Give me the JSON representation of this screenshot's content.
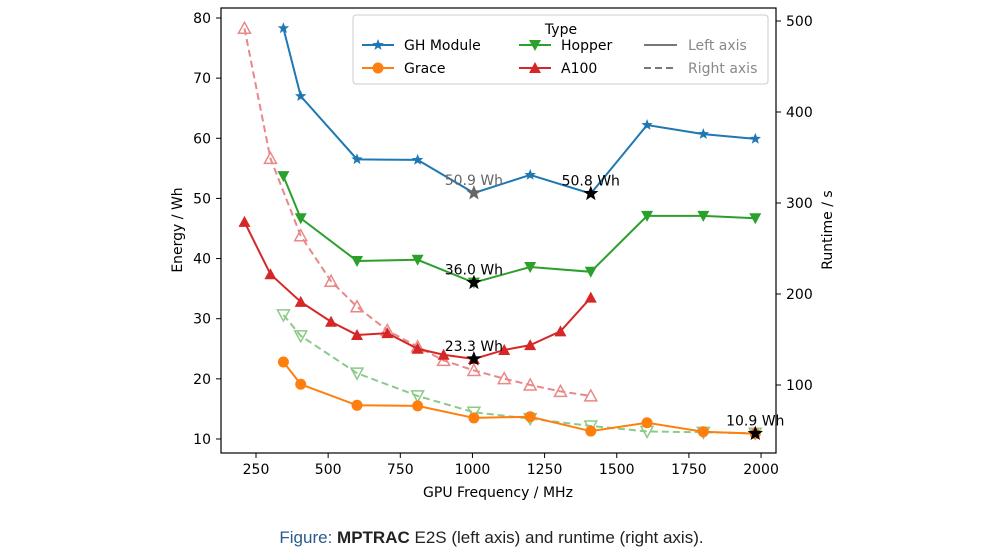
{
  "chart_data": {
    "type": "line",
    "xlabel": "GPU Frequency / MHz",
    "ylabel": "Energy / Wh",
    "ylabel_right": "Runtime / s",
    "xlim": [
      150,
      2040
    ],
    "ylim": [
      7.5,
      81.7
    ],
    "ylim_right": [
      0,
      525
    ],
    "xticks": [
      250,
      500,
      750,
      1000,
      1250,
      1500,
      1750,
      2000
    ],
    "yticks": [
      10,
      20,
      30,
      40,
      50,
      60,
      70,
      80
    ],
    "yticks_right": [
      100,
      200,
      300,
      400,
      500
    ],
    "grid": false,
    "legend": {
      "title": "Type",
      "placement": "top-right",
      "entries": [
        "GH Module",
        "Grace",
        "Hopper",
        "A100"
      ],
      "style_entries": [
        "Left axis",
        "Right axis"
      ]
    },
    "colors": {
      "GH Module": "#1f77b4",
      "Grace": "#ff7f0e",
      "Hopper": "#2ca02c",
      "A100": "#d62728"
    },
    "series": [
      {
        "name": "GH Module",
        "axis": "left",
        "marker": "star",
        "x": [
          345,
          405,
          600,
          810,
          1005,
          1200,
          1410,
          1605,
          1800,
          1980
        ],
        "y": [
          78.3,
          67.0,
          56.5,
          56.4,
          50.9,
          53.9,
          50.8,
          62.2,
          60.7,
          59.9
        ]
      },
      {
        "name": "Grace",
        "axis": "left",
        "marker": "circle",
        "x": [
          345,
          405,
          600,
          810,
          1005,
          1200,
          1410,
          1605,
          1800,
          1980
        ],
        "y": [
          22.8,
          19.1,
          15.6,
          15.5,
          13.5,
          13.7,
          11.3,
          12.7,
          11.2,
          10.9
        ]
      },
      {
        "name": "Hopper",
        "axis": "left",
        "marker": "triangle-down",
        "x": [
          345,
          405,
          600,
          810,
          1005,
          1200,
          1410,
          1605,
          1800,
          1980
        ],
        "y": [
          53.7,
          46.7,
          39.6,
          39.8,
          36.0,
          38.6,
          37.8,
          47.1,
          47.1,
          46.7
        ]
      },
      {
        "name": "A100",
        "axis": "left",
        "marker": "triangle-up",
        "x": [
          210,
          300,
          405,
          510,
          600,
          705,
          810,
          900,
          1005,
          1110,
          1200,
          1305,
          1410
        ],
        "y": [
          46.1,
          37.4,
          32.8,
          29.5,
          27.3,
          27.6,
          25.0,
          24.0,
          23.3,
          24.8,
          25.6,
          27.9,
          33.5
        ]
      },
      {
        "name": "Hopper",
        "axis": "right",
        "marker": "triangle-down",
        "x": [
          345,
          405,
          600,
          810,
          1005,
          1200,
          1410,
          1605,
          1800,
          1980
        ],
        "y": [
          177,
          154,
          113,
          88,
          70,
          63,
          55,
          49,
          48,
          47
        ]
      },
      {
        "name": "A100",
        "axis": "right",
        "marker": "triangle-up",
        "x": [
          210,
          300,
          405,
          510,
          600,
          705,
          810,
          900,
          1005,
          1110,
          1200,
          1305,
          1410
        ],
        "y": [
          492,
          349,
          264,
          214,
          186,
          160,
          142,
          127,
          116,
          107,
          100,
          93,
          88
        ]
      }
    ],
    "annotations": [
      {
        "text": "50.9 Wh",
        "x": 1005,
        "y": 50.9,
        "color": "#666666"
      },
      {
        "text": "50.8 Wh",
        "x": 1410,
        "y": 50.8,
        "color": "#000000"
      },
      {
        "text": "36.0 Wh",
        "x": 1005,
        "y": 36.0,
        "color": "#000000"
      },
      {
        "text": "23.3 Wh",
        "x": 1005,
        "y": 23.3,
        "color": "#000000"
      },
      {
        "text": "10.9 Wh",
        "x": 1980,
        "y": 10.9,
        "color": "#000000"
      }
    ]
  },
  "caption": {
    "lead": "Figure:",
    "bold": "MPTRAC",
    "rest": " E2S (left axis) and runtime (right axis)."
  }
}
